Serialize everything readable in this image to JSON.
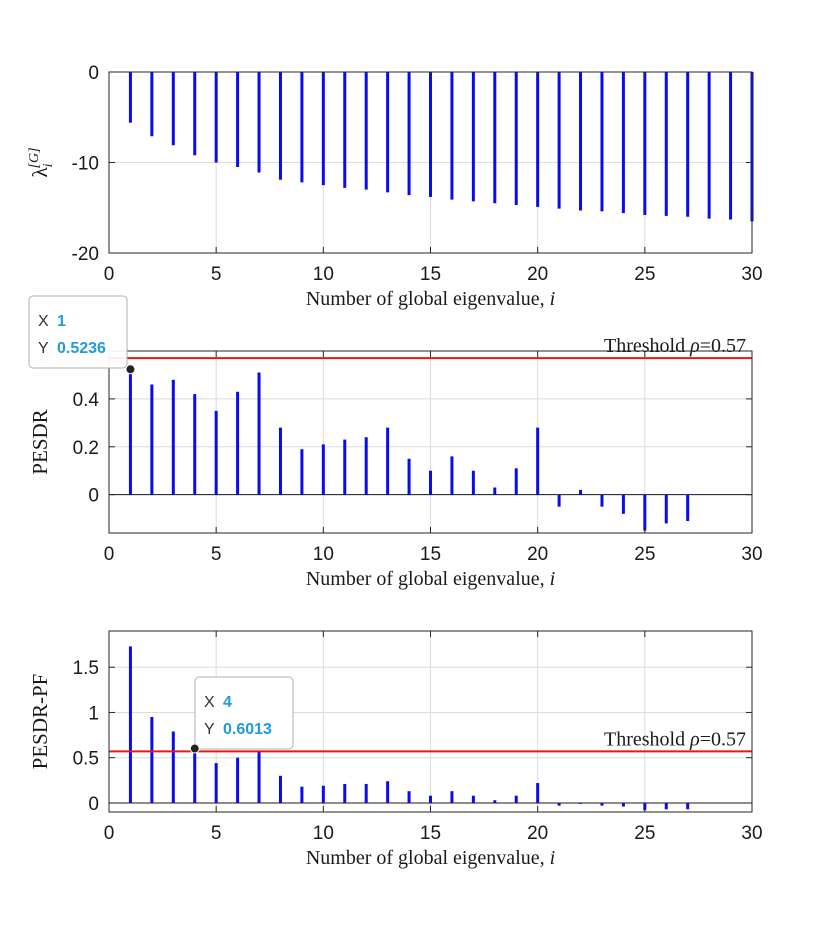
{
  "colors": {
    "stem": "#0a0af0",
    "threshold": "#e81717",
    "grid": "#dcdcdc",
    "axis": "#262626",
    "tip_value": "#1f9bde"
  },
  "chart_data": [
    {
      "type": "stem",
      "id": "lambda",
      "title": "",
      "xlabel": "Number of global eigenvalue, ",
      "xlabel_var": "i",
      "ylabel": "λ",
      "ylabel_sub": "i",
      "ylabel_sup": "[G]",
      "xlim": [
        0,
        30
      ],
      "ylim": [
        -20,
        0
      ],
      "xticks": [
        0,
        5,
        10,
        15,
        20,
        25,
        30
      ],
      "xtick_labels": [
        "0",
        "5",
        "10",
        "15",
        "20",
        "25",
        "30"
      ],
      "yticks": [
        -20,
        -10,
        0
      ],
      "ytick_labels": [
        "-20",
        "-10",
        "0"
      ],
      "grid": true,
      "x": [
        1,
        2,
        3,
        4,
        5,
        6,
        7,
        8,
        9,
        10,
        11,
        12,
        13,
        14,
        15,
        16,
        17,
        18,
        19,
        20,
        21,
        22,
        23,
        24,
        25,
        26,
        27,
        28,
        29,
        30
      ],
      "values": [
        -5.6,
        -7.1,
        -8.1,
        -9.2,
        -10.0,
        -10.5,
        -11.1,
        -11.9,
        -12.2,
        -12.5,
        -12.8,
        -13.0,
        -13.3,
        -13.6,
        -13.8,
        -14.1,
        -14.3,
        -14.5,
        -14.7,
        -14.9,
        -15.1,
        -15.3,
        -15.4,
        -15.6,
        -15.8,
        -15.9,
        -16.0,
        -16.2,
        -16.3,
        -16.5
      ]
    },
    {
      "type": "stem",
      "id": "pesdr",
      "title": "",
      "xlabel": "Number of global eigenvalue, ",
      "xlabel_var": "i",
      "ylabel": "PESDR",
      "xlim": [
        0,
        30
      ],
      "ylim": [
        -0.16,
        0.6
      ],
      "xticks": [
        0,
        5,
        10,
        15,
        20,
        25,
        30
      ],
      "xtick_labels": [
        "0",
        "5",
        "10",
        "15",
        "20",
        "25",
        "30"
      ],
      "yticks": [
        0,
        0.2,
        0.4
      ],
      "ytick_labels": [
        "0",
        "0.2",
        "0.4"
      ],
      "grid": true,
      "x": [
        1,
        2,
        3,
        4,
        5,
        6,
        7,
        8,
        9,
        10,
        11,
        12,
        13,
        14,
        15,
        16,
        17,
        18,
        19,
        20,
        21,
        22,
        23,
        24,
        25,
        26,
        27,
        28,
        29,
        30
      ],
      "values": [
        0.5236,
        0.46,
        0.48,
        0.42,
        0.35,
        0.43,
        0.51,
        0.28,
        0.19,
        0.21,
        0.23,
        0.24,
        0.28,
        0.15,
        0.1,
        0.16,
        0.1,
        0.03,
        0.11,
        0.28,
        -0.05,
        0.02,
        -0.05,
        -0.08,
        -0.15,
        -0.12,
        -0.11,
        0,
        0,
        0
      ],
      "threshold": {
        "value": 0.57,
        "label_prefix": "Threshold ",
        "label_symbol": "ρ",
        "label_value": "=0.57"
      },
      "datatip": {
        "x_label": "X",
        "x_value": "1",
        "y_label": "Y",
        "y_value": "0.5236",
        "x": 1,
        "y": 0.5236
      }
    },
    {
      "type": "stem",
      "id": "pesdrpf",
      "title": "",
      "xlabel": "Number of global eigenvalue, ",
      "xlabel_var": "i",
      "ylabel": "PESDR-PF",
      "xlim": [
        0,
        30
      ],
      "ylim": [
        -0.1,
        1.9
      ],
      "xticks": [
        0,
        5,
        10,
        15,
        20,
        25,
        30
      ],
      "xtick_labels": [
        "0",
        "5",
        "10",
        "15",
        "20",
        "25",
        "30"
      ],
      "yticks": [
        0,
        0.5,
        1,
        1.5
      ],
      "ytick_labels": [
        "0",
        "0.5",
        "1",
        "1.5"
      ],
      "grid": true,
      "x": [
        1,
        2,
        3,
        4,
        5,
        6,
        7,
        8,
        9,
        10,
        11,
        12,
        13,
        14,
        15,
        16,
        17,
        18,
        19,
        20,
        21,
        22,
        23,
        24,
        25,
        26,
        27,
        28,
        29,
        30
      ],
      "values": [
        1.73,
        0.95,
        0.79,
        0.6013,
        0.44,
        0.5,
        0.58,
        0.3,
        0.18,
        0.19,
        0.21,
        0.21,
        0.24,
        0.13,
        0.08,
        0.13,
        0.08,
        0.03,
        0.08,
        0.22,
        -0.03,
        -0.01,
        -0.03,
        -0.04,
        -0.08,
        -0.07,
        -0.07,
        0,
        0,
        0
      ],
      "threshold": {
        "value": 0.57,
        "label_prefix": "Threshold ",
        "label_symbol": "ρ",
        "label_value": "=0.57"
      },
      "datatip": {
        "x_label": "X",
        "x_value": "4",
        "y_label": "Y",
        "y_value": "0.6013",
        "x": 4,
        "y": 0.6013
      }
    }
  ]
}
